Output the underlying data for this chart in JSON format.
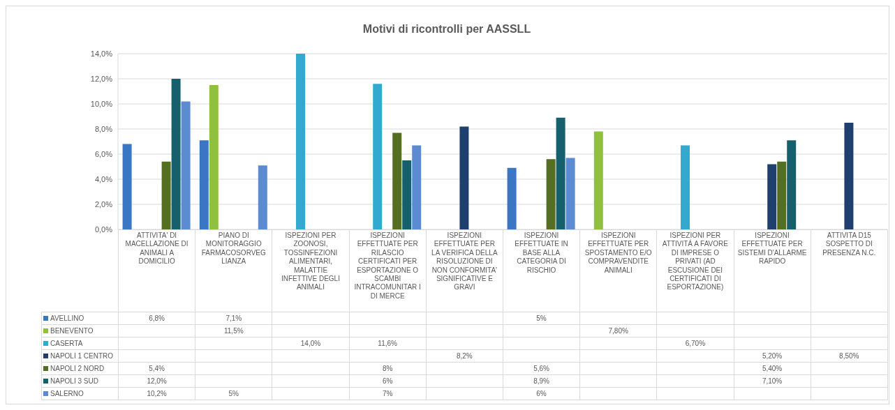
{
  "chart_data": {
    "type": "bar",
    "title": "Motivi di ricontrolli per AASSLL",
    "categories": [
      "ATTIVITA' DI MACELLAZIONE DI ANIMALI A DOMICILIO",
      "PIANO DI MONITORAGGIO FARMACOSORVEG LIANZA",
      "ISPEZIONI PER ZOONOSI, TOSSINFEZIONI ALIMENTARI, MALATTIE INFETTIVE DEGLI ANIMALI",
      "ISPEZIONI EFFETTUATE PER RILASCIO CERTIFICATI PER ESPORTAZIONE O SCAMBI INTRACOMUNITAR I DI MERCE",
      "ISPEZIONI EFFETTUATE PER LA VERIFICA DELLA RISOLUZIONE DI NON CONFORMITA' SIGNIFICATIVE E GRAVI",
      "ISPEZIONI EFFETTUATE IN BASE ALLA CATEGORIA DI RISCHIO",
      "ISPEZIONI EFFETTUATE PER SPOSTAMENTO E/O COMPRAVENDITE ANIMALI",
      "ISPEZIONI PER ATTIVITÁ A FAVORE DI IMPRESE O PRIVATI (AD ESCUSIONE DEI CERTIFICATI DI ESPORTAZIONE)",
      "ISPEZIONI EFFETTUATE PER SISTEMI D'ALLARME RAPIDO",
      "ATTIVITA D15 SOSPETTO DI PRESENZA N.C."
    ],
    "series": [
      {
        "name": "AVELLINO",
        "color": "#3a76c4",
        "values": [
          6.8,
          7.1,
          null,
          null,
          null,
          4.9,
          null,
          null,
          null,
          null
        ],
        "value_labels": [
          "6,8%",
          "7,1%",
          null,
          null,
          null,
          "5%",
          null,
          null,
          null,
          null
        ]
      },
      {
        "name": "BENEVENTO",
        "color": "#8fc13f",
        "values": [
          null,
          11.5,
          null,
          null,
          null,
          null,
          7.8,
          null,
          null,
          null
        ],
        "value_labels": [
          null,
          "11,5%",
          null,
          null,
          null,
          null,
          "7,80%",
          null,
          null,
          null
        ]
      },
      {
        "name": "CASERTA",
        "color": "#33a9cf",
        "values": [
          null,
          null,
          14.0,
          11.6,
          null,
          null,
          null,
          6.7,
          null,
          null
        ],
        "value_labels": [
          null,
          null,
          "14,0%",
          "11,6%",
          null,
          null,
          null,
          "6,70%",
          null,
          null
        ]
      },
      {
        "name": "NAPOLI 1 CENTRO",
        "color": "#1f3f6e",
        "values": [
          null,
          null,
          null,
          null,
          8.2,
          null,
          null,
          null,
          5.2,
          8.5
        ],
        "value_labels": [
          null,
          null,
          null,
          null,
          "8,2%",
          null,
          null,
          null,
          "5,20%",
          "8,50%"
        ]
      },
      {
        "name": "NAPOLI 2 NORD",
        "color": "#556f22",
        "values": [
          5.4,
          null,
          null,
          7.7,
          null,
          5.6,
          null,
          null,
          5.4,
          null
        ],
        "value_labels": [
          "5,4%",
          null,
          null,
          "8%",
          null,
          "5,6%",
          null,
          null,
          "5,40%",
          null
        ]
      },
      {
        "name": "NAPOLI 3 SUD",
        "color": "#16606e",
        "values": [
          12.0,
          null,
          null,
          5.5,
          null,
          8.9,
          null,
          null,
          7.1,
          null
        ],
        "value_labels": [
          "12,0%",
          null,
          null,
          "6%",
          null,
          "8,9%",
          null,
          null,
          "7,10%",
          null
        ]
      },
      {
        "name": "SALERNO",
        "color": "#5b8bd0",
        "values": [
          10.2,
          5.1,
          null,
          6.7,
          null,
          5.7,
          null,
          null,
          null,
          null
        ],
        "value_labels": [
          "10,2%",
          "5%",
          null,
          "7%",
          null,
          "6%",
          null,
          null,
          null,
          null
        ]
      }
    ],
    "ylim": [
      0,
      14
    ],
    "yticks": [
      {
        "value": 0,
        "label": "0,0%"
      },
      {
        "value": 2,
        "label": "2,0%"
      },
      {
        "value": 4,
        "label": "4,0%"
      },
      {
        "value": 6,
        "label": "6,0%"
      },
      {
        "value": 8,
        "label": "8,0%"
      },
      {
        "value": 10,
        "label": "10,0%"
      },
      {
        "value": 12,
        "label": "12,0%"
      },
      {
        "value": 14,
        "label": "14,0%"
      }
    ],
    "grid": "y",
    "legend": "bottom"
  }
}
